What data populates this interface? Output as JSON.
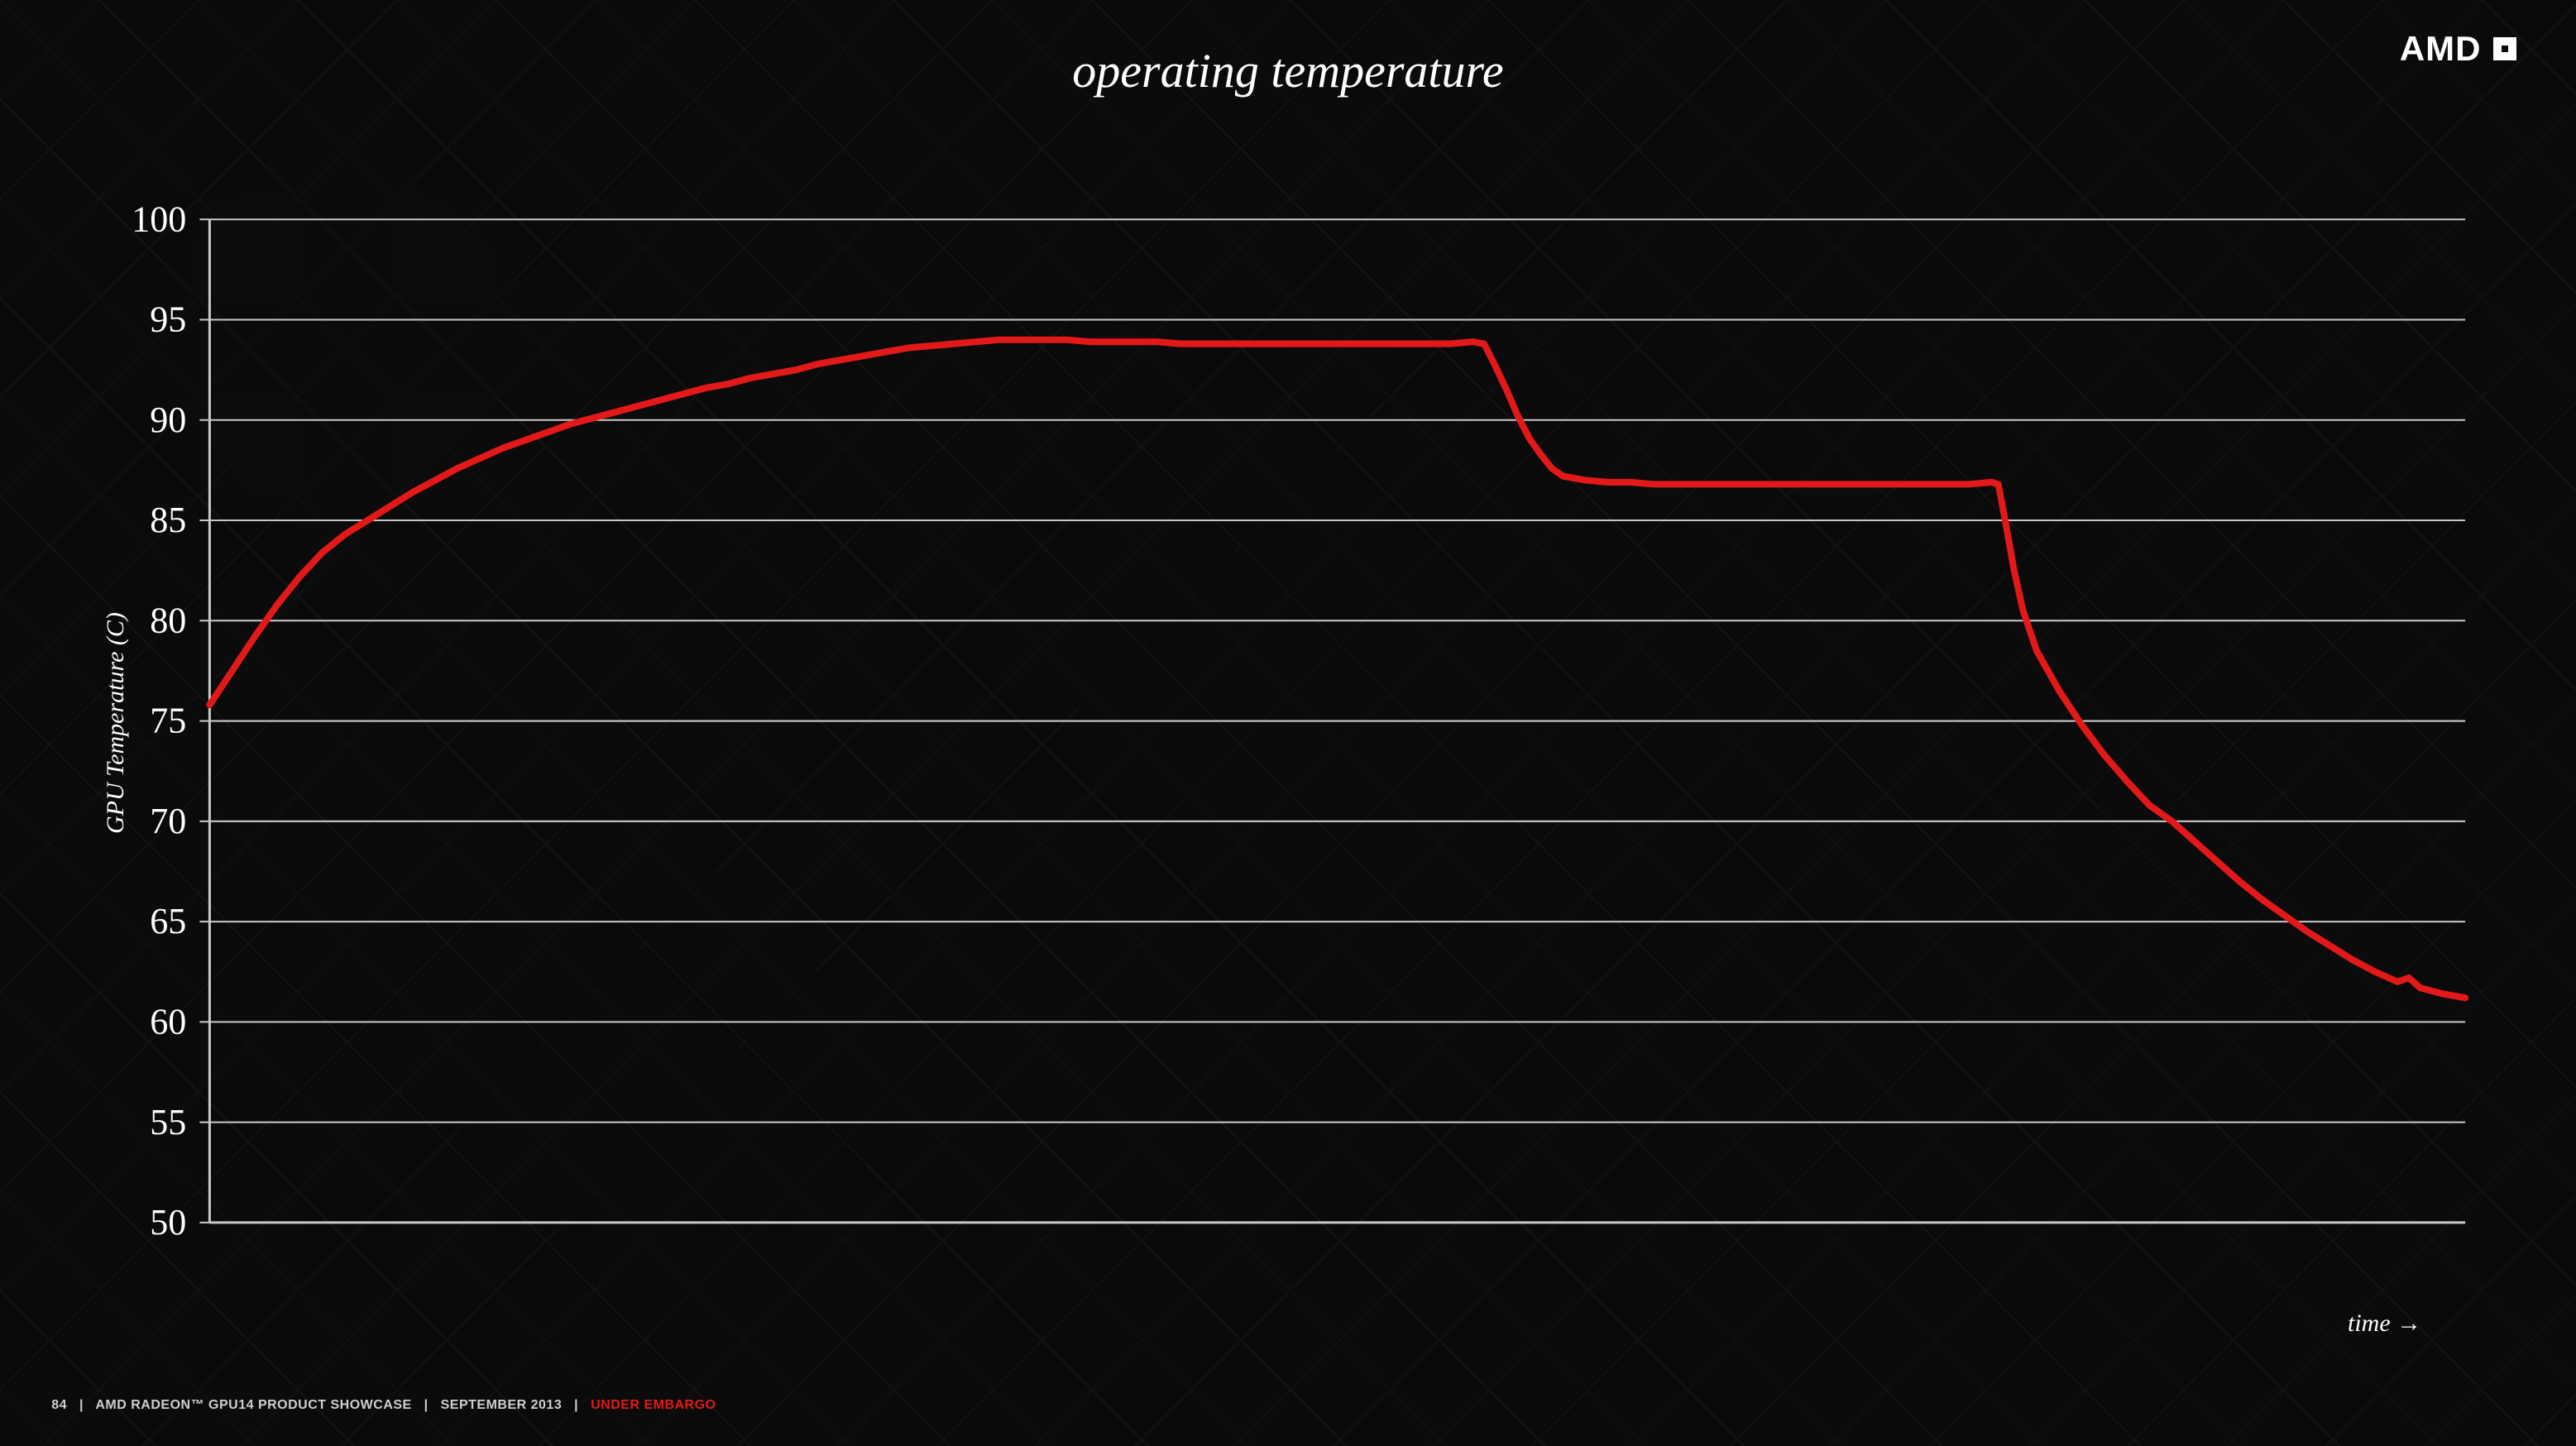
{
  "title": "operating temperature",
  "logo_text": "AMD",
  "chart": {
    "type": "line",
    "y_label": "GPU Temperature (C)",
    "x_label": "time  →",
    "ylim": [
      50,
      100
    ],
    "ytick_step": 5,
    "y_ticks": [
      50,
      55,
      60,
      65,
      70,
      75,
      80,
      85,
      90,
      95,
      100
    ],
    "xlim": [
      0,
      100
    ],
    "line_color": "#e31919",
    "line_width": 4,
    "grid_color": "#c9c9c9",
    "grid_width": 1,
    "axis_color": "#c9c9c9",
    "background_color": "transparent",
    "tick_label_color": "#ffffff",
    "tick_label_fontsize": 22,
    "title_fontsize": 58,
    "axis_label_fontsize": 30,
    "data": [
      [
        0,
        75.8
      ],
      [
        1,
        77.5
      ],
      [
        2,
        79.2
      ],
      [
        3,
        80.8
      ],
      [
        4,
        82.2
      ],
      [
        5,
        83.4
      ],
      [
        6,
        84.3
      ],
      [
        7,
        85.0
      ],
      [
        8,
        85.7
      ],
      [
        9,
        86.4
      ],
      [
        10,
        87.0
      ],
      [
        11,
        87.6
      ],
      [
        12,
        88.1
      ],
      [
        13,
        88.6
      ],
      [
        14,
        89.0
      ],
      [
        15,
        89.4
      ],
      [
        16,
        89.8
      ],
      [
        17,
        90.1
      ],
      [
        18,
        90.4
      ],
      [
        19,
        90.7
      ],
      [
        20,
        91.0
      ],
      [
        21,
        91.3
      ],
      [
        22,
        91.6
      ],
      [
        23,
        91.8
      ],
      [
        24,
        92.1
      ],
      [
        25,
        92.3
      ],
      [
        26,
        92.5
      ],
      [
        27,
        92.8
      ],
      [
        28,
        93.0
      ],
      [
        29,
        93.2
      ],
      [
        30,
        93.4
      ],
      [
        31,
        93.6
      ],
      [
        32,
        93.7
      ],
      [
        33,
        93.8
      ],
      [
        34,
        93.9
      ],
      [
        35,
        94.0
      ],
      [
        36,
        94.0
      ],
      [
        37,
        94.0
      ],
      [
        38,
        94.0
      ],
      [
        39,
        93.9
      ],
      [
        40,
        93.9
      ],
      [
        41,
        93.9
      ],
      [
        42,
        93.9
      ],
      [
        43,
        93.8
      ],
      [
        44,
        93.8
      ],
      [
        45,
        93.8
      ],
      [
        46,
        93.8
      ],
      [
        47,
        93.8
      ],
      [
        48,
        93.8
      ],
      [
        49,
        93.8
      ],
      [
        50,
        93.8
      ],
      [
        51,
        93.8
      ],
      [
        52,
        93.8
      ],
      [
        53,
        93.8
      ],
      [
        54,
        93.8
      ],
      [
        55,
        93.8
      ],
      [
        56,
        93.9
      ],
      [
        56.5,
        93.8
      ],
      [
        57,
        92.7
      ],
      [
        57.5,
        91.5
      ],
      [
        58,
        90.2
      ],
      [
        58.5,
        89.1
      ],
      [
        59,
        88.3
      ],
      [
        59.5,
        87.6
      ],
      [
        60,
        87.2
      ],
      [
        61,
        87.0
      ],
      [
        62,
        86.9
      ],
      [
        63,
        86.9
      ],
      [
        64,
        86.8
      ],
      [
        65,
        86.8
      ],
      [
        66,
        86.8
      ],
      [
        67,
        86.8
      ],
      [
        68,
        86.8
      ],
      [
        69,
        86.8
      ],
      [
        70,
        86.8
      ],
      [
        71,
        86.8
      ],
      [
        72,
        86.8
      ],
      [
        73,
        86.8
      ],
      [
        74,
        86.8
      ],
      [
        75,
        86.8
      ],
      [
        76,
        86.8
      ],
      [
        77,
        86.8
      ],
      [
        78,
        86.8
      ],
      [
        79,
        86.9
      ],
      [
        79.3,
        86.8
      ],
      [
        79.6,
        85.0
      ],
      [
        80,
        82.5
      ],
      [
        80.4,
        80.5
      ],
      [
        81,
        78.5
      ],
      [
        82,
        76.5
      ],
      [
        83,
        74.8
      ],
      [
        84,
        73.3
      ],
      [
        85,
        72.0
      ],
      [
        86,
        70.8
      ],
      [
        87,
        70.0
      ],
      [
        88,
        69.0
      ],
      [
        89,
        68.0
      ],
      [
        90,
        67.0
      ],
      [
        91,
        66.1
      ],
      [
        92,
        65.3
      ],
      [
        93,
        64.5
      ],
      [
        94,
        63.8
      ],
      [
        95,
        63.1
      ],
      [
        96,
        62.5
      ],
      [
        97,
        62.0
      ],
      [
        97.5,
        62.2
      ],
      [
        98,
        61.7
      ],
      [
        99,
        61.4
      ],
      [
        100,
        61.2
      ]
    ]
  },
  "footer": {
    "page_number": "84",
    "text1": "AMD RADEON™ GPU14 PRODUCT SHOWCASE",
    "text2": "SEPTEMBER 2013",
    "embargo": "UNDER EMBARGO",
    "separator": "|"
  },
  "colors": {
    "background": "#0a0a0a",
    "text": "#ffffff",
    "accent": "#e31919",
    "footer_text": "#cfcfcf"
  }
}
